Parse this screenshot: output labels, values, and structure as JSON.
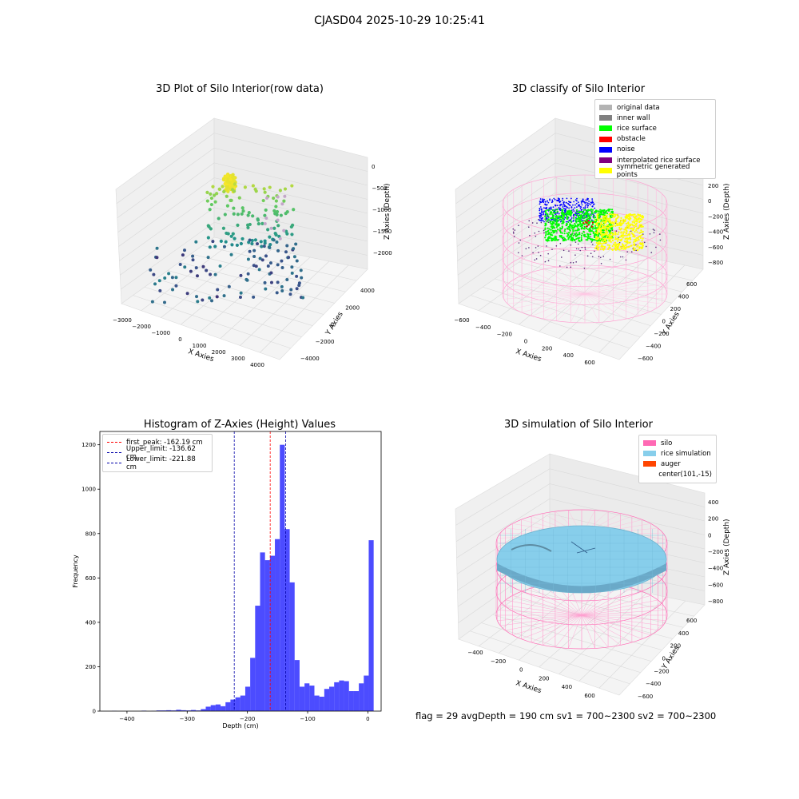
{
  "suptitle": "CJASD04 2025-10-29 10:25:41",
  "footer": "flag = 29  avgDepth = 190 cm  sv1 = 700~2300  sv2 = 700~2300",
  "panels": {
    "raw": {
      "title": "3D Plot of Silo Interior(row data)",
      "xlabel": "X Axies",
      "ylabel": "Y Axies",
      "zlabel": "Z Axies (Depth)",
      "xticks": [
        "−3000",
        "−2000",
        "−1000",
        "0",
        "1000",
        "2000",
        "3000",
        "4000"
      ],
      "yticks": [
        "−4000",
        "−2000",
        "0",
        "2000",
        "4000"
      ],
      "zticks": [
        "0",
        "−500",
        "−1000",
        "−1500",
        "−2000"
      ]
    },
    "classify": {
      "title": "3D classify of Silo Interior",
      "xlabel": "X Axies",
      "ylabel": "Y Axies",
      "zlabel": "Z Axies (Depth)",
      "xticks": [
        "−600",
        "−400",
        "−200",
        "0",
        "200",
        "400",
        "600"
      ],
      "yticks": [
        "−600",
        "−400",
        "−200",
        "0",
        "200",
        "400",
        "600"
      ],
      "zticks": [
        "200",
        "0",
        "−200",
        "−400",
        "−600",
        "−800"
      ],
      "legend": [
        {
          "label": "original data",
          "color": "#b3b3b3"
        },
        {
          "label": "inner wall",
          "color": "#808080"
        },
        {
          "label": "rice surface",
          "color": "#00ff00"
        },
        {
          "label": "obstacle",
          "color": "#ff0000"
        },
        {
          "label": "noise",
          "color": "#0000ff"
        },
        {
          "label": "interpolated rice surface",
          "color": "#800080"
        },
        {
          "label": "symmetric generated points",
          "color": "#ffff00"
        }
      ]
    },
    "simulation": {
      "title": "3D simulation of Silo Interior",
      "xlabel": "X Axies",
      "ylabel": "Y Axies",
      "zlabel": "Z Axies (Depth)",
      "xticks": [
        "−400",
        "−200",
        "0",
        "200",
        "400",
        "600"
      ],
      "yticks": [
        "−600",
        "−400",
        "−200",
        "0",
        "200",
        "400",
        "600"
      ],
      "zticks": [
        "400",
        "200",
        "0",
        "−200",
        "−400",
        "−600",
        "−800"
      ],
      "legend": [
        {
          "label": "silo",
          "color": "#ff69b4"
        },
        {
          "label": "rice simulation",
          "color": "#87ceeb"
        },
        {
          "label": "auger",
          "color": "#ff4500"
        },
        {
          "label": "center(101,-15)",
          "color": ""
        }
      ]
    }
  },
  "chart_data": [
    {
      "type": "bar",
      "title": "Histogram of Z-Axies (Height) Values",
      "xlabel": "Depth (cm)",
      "ylabel": "Frequency",
      "xlim": [
        -445,
        22
      ],
      "ylim": [
        0,
        1260
      ],
      "xticks": [
        -400,
        -300,
        -200,
        -100,
        0
      ],
      "yticks": [
        0,
        200,
        400,
        600,
        800,
        1000,
        1200
      ],
      "bar_color": "#0000ff",
      "bar_alpha": 0.7,
      "bin_width": 8.2,
      "bin_start": -425,
      "counts": [
        1,
        0,
        0,
        0,
        0,
        0,
        2,
        0,
        1,
        3,
        3,
        4,
        3,
        6,
        4,
        3,
        5,
        3,
        9,
        20,
        27,
        30,
        22,
        40,
        52,
        62,
        70,
        110,
        240,
        475,
        715,
        680,
        700,
        775,
        1200,
        820,
        580,
        230,
        110,
        125,
        115,
        70,
        65,
        100,
        110,
        130,
        138,
        135,
        90,
        90,
        125,
        160,
        770
      ],
      "lines": [
        {
          "label": "first_peak: -162.19 cm",
          "x": -162.19,
          "color": "#ff0000"
        },
        {
          "label": "Upper_limit: -136.62 cm",
          "x": -136.62,
          "color": "#0000aa"
        },
        {
          "label": "Lower_limit: -221.88 cm",
          "x": -221.88,
          "color": "#0000aa"
        }
      ]
    }
  ]
}
